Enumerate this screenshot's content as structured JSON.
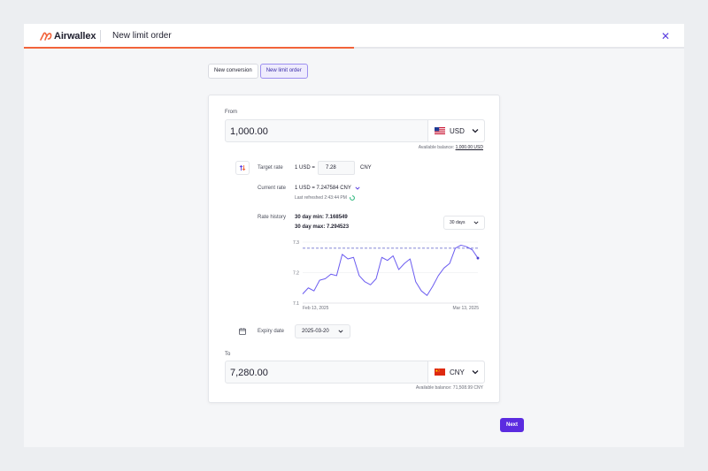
{
  "app": {
    "brand": "Airwallex",
    "title": "New limit order",
    "close_symbol": "✕"
  },
  "progress": {
    "fraction": 0.5
  },
  "tabs": [
    {
      "label": "New conversion",
      "active": false
    },
    {
      "label": "New limit order",
      "active": true
    }
  ],
  "from": {
    "label": "From",
    "amount": "1,000.00",
    "currency": "USD",
    "balance_prefix": "Available balance: ",
    "balance_value": "1,000.00 USD"
  },
  "target_rate": {
    "label": "Target rate",
    "prefix": "1 USD =",
    "value": "7.28",
    "suffix": "CNY"
  },
  "current_rate": {
    "label": "Current rate",
    "value": "1 USD = 7.247584 CNY",
    "refreshed": "Last refreshed 2:43:44 PM"
  },
  "rate_history": {
    "label": "Rate history",
    "min_text": "30 day min: 7.168549",
    "max_text": "30 day max: 7.294523",
    "period": "30 days"
  },
  "chart_data": {
    "type": "line",
    "y_ticks": [
      "7.3",
      "7.2",
      "7.1"
    ],
    "ylim": [
      7.1,
      7.3
    ],
    "x_tick_labels": [
      "Feb 13, 2025",
      "Mar 13, 2025"
    ],
    "target_line": 7.28,
    "series": [
      {
        "values": [
          7.13,
          7.15,
          7.14,
          7.175,
          7.18,
          7.195,
          7.19,
          7.26,
          7.245,
          7.25,
          7.19,
          7.17,
          7.16,
          7.18,
          7.25,
          7.24,
          7.255,
          7.21,
          7.23,
          7.245,
          7.17,
          7.14,
          7.125,
          7.155,
          7.19,
          7.215,
          7.23,
          7.28,
          7.29,
          7.285,
          7.275,
          7.247584
        ]
      }
    ],
    "grid": true
  },
  "expiry": {
    "label": "Expiry date",
    "value": "2025-03-20"
  },
  "to": {
    "label": "To",
    "amount": "7,280.00",
    "currency": "CNY",
    "balance_text": "Available balance: 71,508.99 CNY"
  },
  "actions": {
    "next": "Next"
  },
  "colors": {
    "accent": "#5b2be0",
    "brand_orange": "#f2633a",
    "chart_line": "#6b5cf0"
  }
}
